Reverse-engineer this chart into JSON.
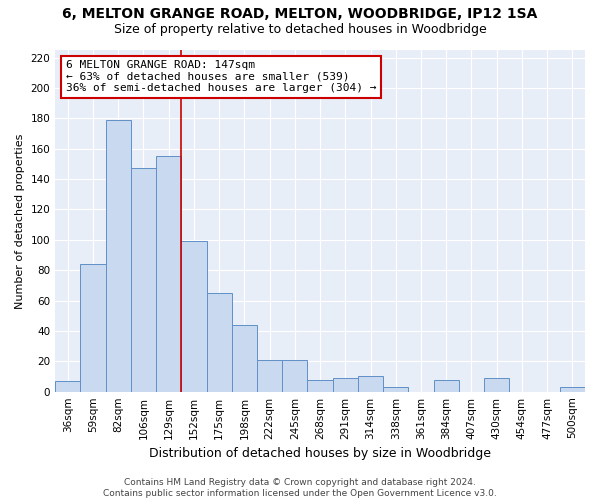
{
  "title": "6, MELTON GRANGE ROAD, MELTON, WOODBRIDGE, IP12 1SA",
  "subtitle": "Size of property relative to detached houses in Woodbridge",
  "xlabel": "Distribution of detached houses by size in Woodbridge",
  "ylabel": "Number of detached properties",
  "categories": [
    "36sqm",
    "59sqm",
    "82sqm",
    "106sqm",
    "129sqm",
    "152sqm",
    "175sqm",
    "198sqm",
    "222sqm",
    "245sqm",
    "268sqm",
    "291sqm",
    "314sqm",
    "338sqm",
    "361sqm",
    "384sqm",
    "407sqm",
    "430sqm",
    "454sqm",
    "477sqm",
    "500sqm"
  ],
  "values": [
    7,
    84,
    179,
    147,
    155,
    99,
    65,
    44,
    21,
    21,
    8,
    9,
    10,
    3,
    0,
    8,
    0,
    9,
    0,
    0,
    3
  ],
  "bar_color": "#c9d9f0",
  "bar_edge_color": "#6090c8",
  "property_line_color": "#cc0000",
  "property_line_x": 4.5,
  "annotation_text": "6 MELTON GRANGE ROAD: 147sqm\n← 63% of detached houses are smaller (539)\n36% of semi-detached houses are larger (304) →",
  "annotation_box_color": "#ffffff",
  "annotation_box_edge_color": "#cc0000",
  "ylim": [
    0,
    225
  ],
  "yticks": [
    0,
    20,
    40,
    60,
    80,
    100,
    120,
    140,
    160,
    180,
    200,
    220
  ],
  "plot_bg_color": "#e8eef8",
  "fig_bg_color": "#ffffff",
  "grid_color": "#ffffff",
  "footer_text": "Contains HM Land Registry data © Crown copyright and database right 2024.\nContains public sector information licensed under the Open Government Licence v3.0.",
  "title_fontsize": 10,
  "subtitle_fontsize": 9,
  "xlabel_fontsize": 9,
  "ylabel_fontsize": 8,
  "tick_fontsize": 7.5,
  "annotation_fontsize": 8,
  "footer_fontsize": 6.5
}
